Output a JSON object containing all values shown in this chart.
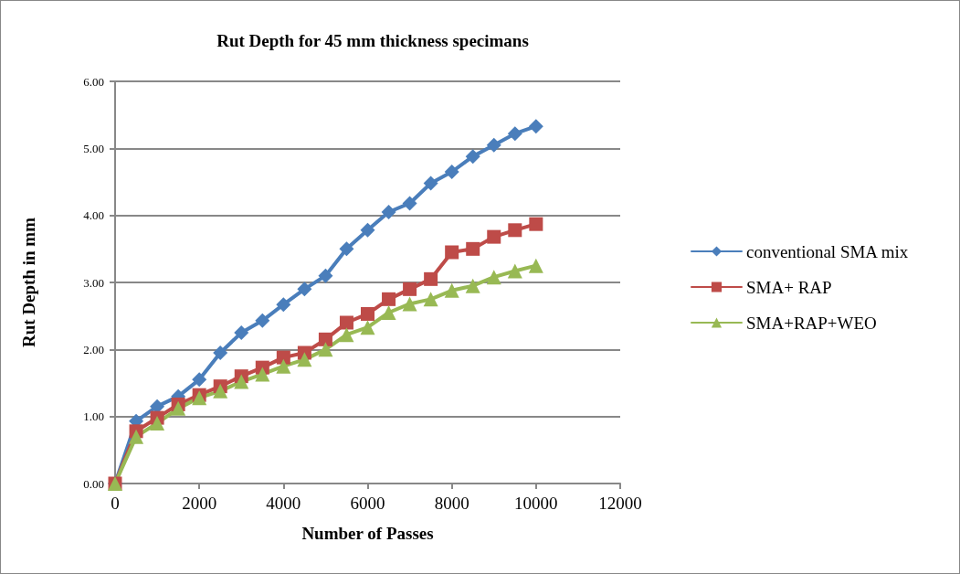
{
  "chart_data": {
    "type": "line",
    "title": "Rut Depth for 45 mm thickness specimans",
    "xlabel": "Number of Passes",
    "ylabel": "Rut Depth in mm",
    "x": [
      0,
      500,
      1000,
      1500,
      2000,
      2500,
      3000,
      3500,
      4000,
      4500,
      5000,
      5500,
      6000,
      6500,
      7000,
      7500,
      8000,
      8500,
      9000,
      9500,
      10000
    ],
    "series": [
      {
        "name": "conventional SMA mix",
        "color": "#4a7ebb",
        "marker": "diamond",
        "values": [
          0,
          0.93,
          1.15,
          1.3,
          1.55,
          1.95,
          2.25,
          2.43,
          2.67,
          2.9,
          3.1,
          3.5,
          3.78,
          4.05,
          4.18,
          4.48,
          4.65,
          4.88,
          5.05,
          5.22,
          5.33
        ]
      },
      {
        "name": "SMA+ RAP",
        "color": "#be4b48",
        "marker": "square",
        "values": [
          0,
          0.78,
          0.98,
          1.18,
          1.32,
          1.45,
          1.6,
          1.73,
          1.88,
          1.95,
          2.15,
          2.4,
          2.53,
          2.75,
          2.9,
          3.05,
          3.45,
          3.5,
          3.68,
          3.78,
          3.87
        ]
      },
      {
        "name": "SMA+RAP+WEO",
        "color": "#98b954",
        "marker": "triangle",
        "values": [
          0,
          0.7,
          0.9,
          1.12,
          1.28,
          1.38,
          1.52,
          1.63,
          1.75,
          1.85,
          2.0,
          2.22,
          2.33,
          2.55,
          2.68,
          2.75,
          2.88,
          2.95,
          3.08,
          3.17,
          3.25
        ]
      }
    ],
    "xlim": [
      0,
      12000
    ],
    "xticks": [
      0,
      2000,
      4000,
      6000,
      8000,
      10000,
      12000
    ],
    "ylim": [
      0,
      6
    ],
    "yticks": [
      {
        "value": 0,
        "label": "0.00"
      },
      {
        "value": 1,
        "label": "1.00"
      },
      {
        "value": 2,
        "label": "2.00"
      },
      {
        "value": 3,
        "label": "3.00"
      },
      {
        "value": 4,
        "label": "4.00"
      },
      {
        "value": 5,
        "label": "5.00"
      },
      {
        "value": 6,
        "label": "6.00"
      }
    ],
    "grid": "y",
    "legend": "right",
    "line_style": "solid"
  }
}
